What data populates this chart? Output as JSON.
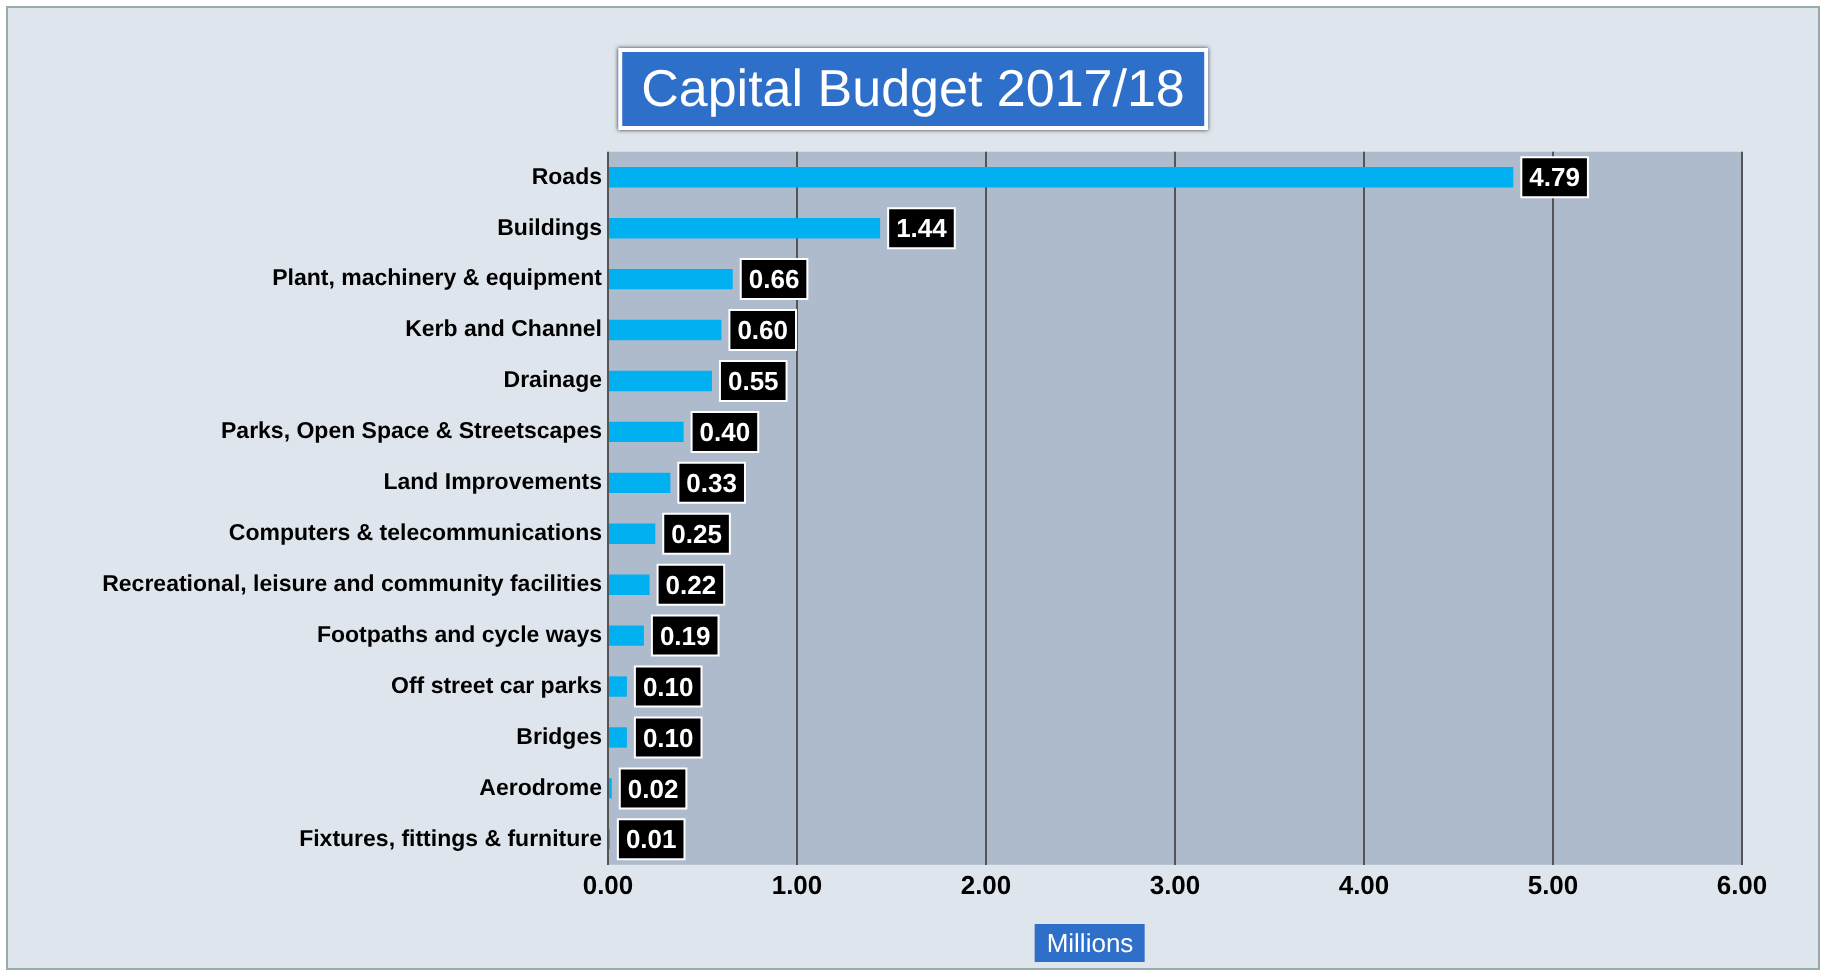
{
  "chart_data": {
    "type": "bar",
    "orientation": "horizontal",
    "title": "Capital Budget 2017/18",
    "xlabel": "Millions",
    "categories": [
      "Roads",
      "Buildings",
      "Plant, machinery & equipment",
      "Kerb and Channel",
      "Drainage",
      "Parks, Open Space & Streetscapes",
      "Land Improvements",
      "Computers & telecommunications",
      "Recreational, leisure and community facilities",
      "Footpaths and cycle ways",
      "Off street car parks",
      "Bridges",
      "Aerodrome",
      "Fixtures, fittings & furniture"
    ],
    "values": [
      4.79,
      1.44,
      0.66,
      0.6,
      0.55,
      0.4,
      0.33,
      0.25,
      0.22,
      0.19,
      0.1,
      0.1,
      0.02,
      0.01
    ],
    "value_labels": [
      "4.79",
      "1.44",
      "0.66",
      "0.60",
      "0.55",
      "0.40",
      "0.33",
      "0.25",
      "0.22",
      "0.19",
      "0.10",
      "0.10",
      "0.02",
      "0.01"
    ],
    "color": "#00b0f0",
    "xlim": [
      0,
      6
    ],
    "xticks": [
      {
        "value": 0,
        "label": "0.00"
      },
      {
        "value": 1,
        "label": "1.00"
      },
      {
        "value": 2,
        "label": "2.00"
      },
      {
        "value": 3,
        "label": "3.00"
      },
      {
        "value": 4,
        "label": "4.00"
      },
      {
        "value": 5,
        "label": "5.00"
      },
      {
        "value": 6,
        "label": "6.00"
      }
    ],
    "grid": "x",
    "legend": false
  }
}
